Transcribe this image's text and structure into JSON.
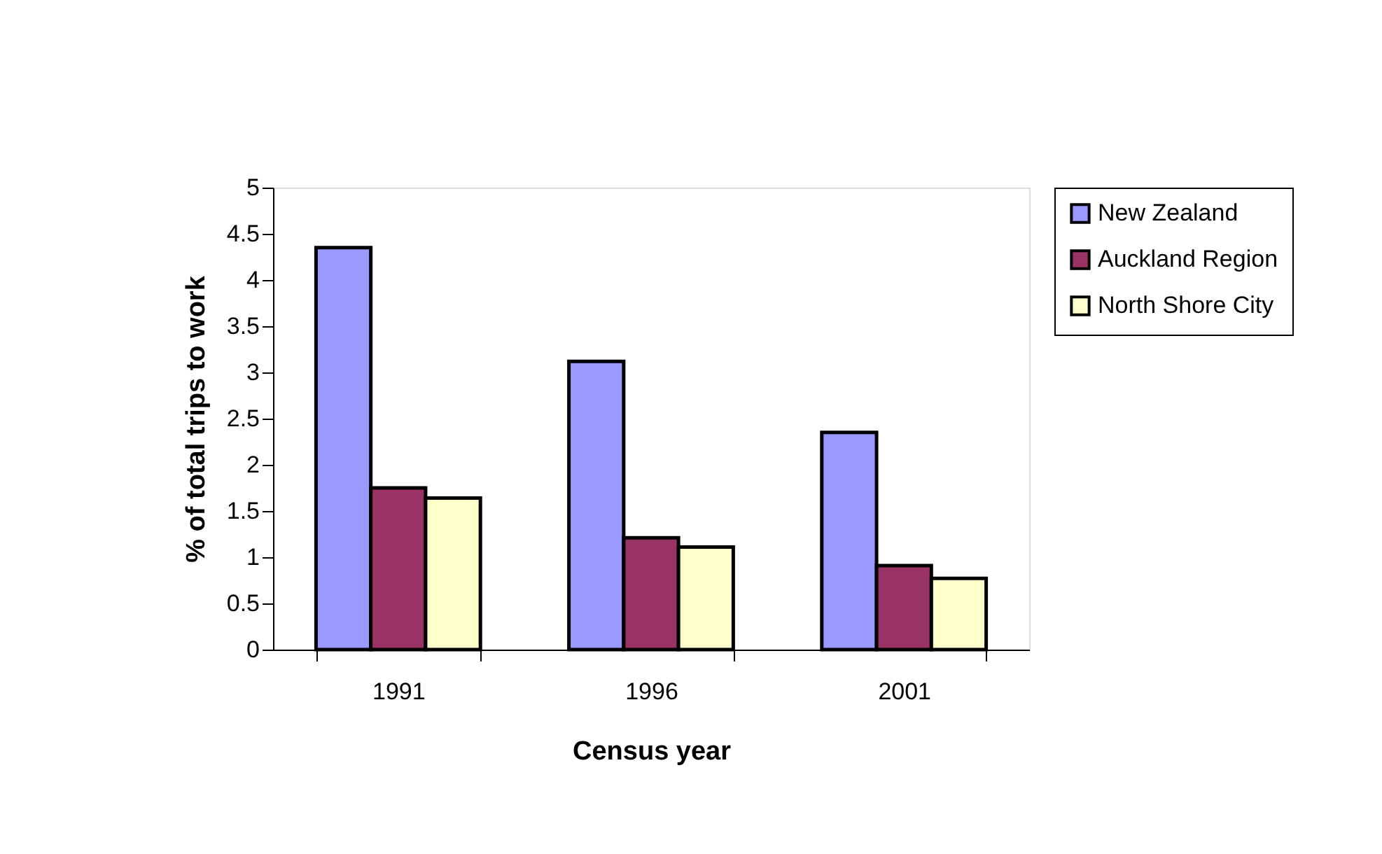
{
  "chart_data": {
    "type": "bar",
    "xlabel": "Census year",
    "ylabel": "% of total trips to work",
    "categories": [
      "1991",
      "1996",
      "2001"
    ],
    "series": [
      {
        "name": "New Zealand",
        "color": "#9999ff",
        "values": [
          4.35,
          3.12,
          2.35
        ]
      },
      {
        "name": "Auckland Region",
        "color": "#993366",
        "values": [
          1.75,
          1.21,
          0.91
        ]
      },
      {
        "name": "North Shore City",
        "color": "#ffffcc",
        "values": [
          1.64,
          1.11,
          0.77
        ]
      }
    ],
    "ylim": [
      0,
      5
    ],
    "yticks": [
      0,
      0.5,
      1,
      1.5,
      2,
      2.5,
      3,
      3.5,
      4,
      4.5,
      5
    ],
    "grid": false,
    "legend": "right"
  }
}
